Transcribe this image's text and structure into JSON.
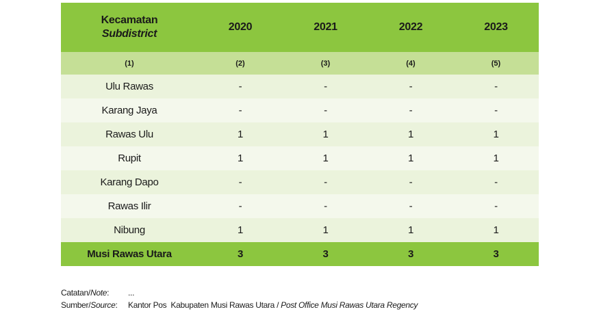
{
  "table": {
    "header": {
      "col1_line1": "Kecamatan",
      "col1_line2": "Subdistrict",
      "years": [
        "2020",
        "2021",
        "2022",
        "2023"
      ]
    },
    "col_numbers": [
      "(1)",
      "(2)",
      "(3)",
      "(4)",
      "(5)"
    ],
    "rows": [
      {
        "name": "Ulu Rawas",
        "values": [
          "-",
          "-",
          "-",
          "-"
        ]
      },
      {
        "name": "Karang Jaya",
        "values": [
          "-",
          "-",
          "-",
          "-"
        ]
      },
      {
        "name": "Rawas Ulu",
        "values": [
          "1",
          "1",
          "1",
          "1"
        ]
      },
      {
        "name": "Rupit",
        "values": [
          "1",
          "1",
          "1",
          "1"
        ]
      },
      {
        "name": "Karang Dapo",
        "values": [
          "-",
          "-",
          "-",
          "-"
        ]
      },
      {
        "name": "Rawas Ilir",
        "values": [
          "-",
          "-",
          "-",
          "-"
        ]
      },
      {
        "name": "Nibung",
        "values": [
          "1",
          "1",
          "1",
          "1"
        ]
      }
    ],
    "total": {
      "name": "Musi Rawas Utara",
      "values": [
        "3",
        "3",
        "3",
        "3"
      ]
    }
  },
  "notes": {
    "note_label": "Catatan/",
    "note_label_en": "Note",
    "note_colon": ":",
    "note_value": "...",
    "source_label": "Sumber/",
    "source_label_en": "Source",
    "source_colon": ":",
    "source_value": "Kantor Pos  Kabupaten Musi Rawas Utara / ",
    "source_value_en": "Post Office Musi Rawas Utara Regency"
  },
  "colors": {
    "header_green": "#8cc63f",
    "number_row_green": "#c5df96",
    "row_light": "#ebf3dc",
    "row_lighter": "#f4f8ec"
  }
}
